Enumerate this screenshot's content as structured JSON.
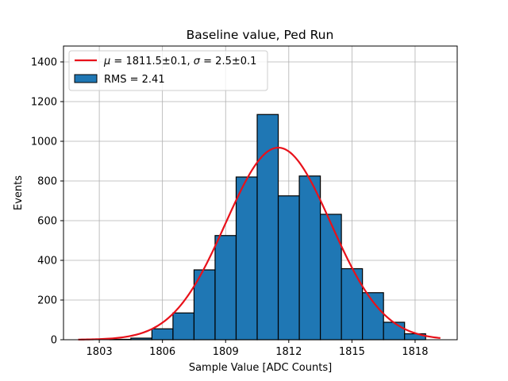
{
  "chart_data": {
    "type": "bar",
    "title": "Baseline value, Ped Run",
    "xlabel": "Sample Value [ADC Counts]",
    "ylabel": "Events",
    "xlim": [
      1801.3,
      1820.0
    ],
    "ylim": [
      0,
      1480
    ],
    "xticks": [
      1803,
      1806,
      1809,
      1812,
      1815,
      1818
    ],
    "yticks": [
      0,
      200,
      400,
      600,
      800,
      1000,
      1200,
      1400
    ],
    "grid": true,
    "legend_position": "top-left",
    "bin_edges": [
      1803.5,
      1804.5,
      1805.5,
      1806.5,
      1807.5,
      1808.5,
      1809.5,
      1810.5,
      1811.5,
      1812.5,
      1813.5,
      1814.5,
      1815.5,
      1816.5,
      1817.5,
      1818.5
    ],
    "values": [
      2,
      8,
      55,
      135,
      352,
      525,
      820,
      1135,
      725,
      825,
      632,
      358,
      237,
      88,
      30
    ],
    "fit": {
      "label_parts": [
        "μ",
        " = 1811.5±0.1, ",
        "σ",
        " = 2.5±0.1"
      ],
      "mu": 1811.5,
      "sigma": 2.5,
      "amplitude": 968,
      "x_range": [
        1802.0,
        1819.2
      ],
      "color": "#e8111a"
    },
    "rms_label": "RMS = 2.41",
    "bar_color": "#1f77b4"
  }
}
